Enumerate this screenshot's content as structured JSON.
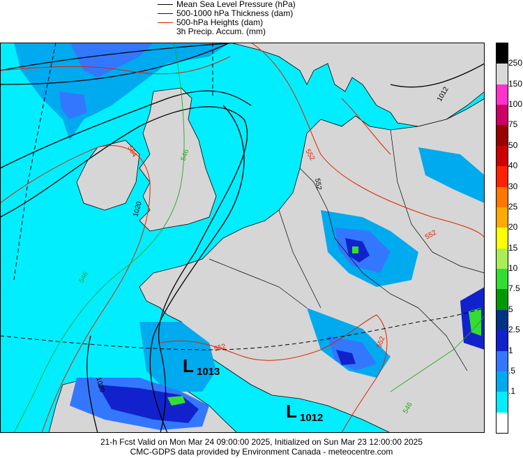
{
  "legend": {
    "items": [
      {
        "label": "Mean Sea Level Pressure (hPa)",
        "color": "#000000"
      },
      {
        "label": "500-1000 hPa Thickness (dam)",
        "color": "#0000cc"
      },
      {
        "label": "500-hPa Heights (dam)",
        "color": "#dd2200"
      },
      {
        "label": "3h Precip. Accum. (mm)",
        "color": ""
      }
    ]
  },
  "colorbar": {
    "labels": [
      "250",
      "150",
      "100",
      "75",
      "50",
      "40",
      "30",
      "25",
      "20",
      "15",
      "10",
      "7.5",
      "5",
      "2.5",
      "1",
      ".5",
      ".1"
    ],
    "colors": [
      "#000000",
      "#d9d9d9",
      "#ff33cc",
      "#cc0066",
      "#990000",
      "#cc0000",
      "#ff2200",
      "#ff7700",
      "#ffaa00",
      "#ffff00",
      "#aaee55",
      "#33dd33",
      "#009900",
      "#003388",
      "#1122cc",
      "#3377ff",
      "#00aaee",
      "#00eeff",
      "#ffffff"
    ]
  },
  "map": {
    "colors": {
      "ocean": "#00eeff",
      "land": "#d6d6d6",
      "light_precip": "#00aaee",
      "medium_precip": "#3377ff",
      "heavy_precip": "#1122cc",
      "very_heavy": "#003388",
      "green": "#33dd33",
      "darkgreen": "#009900"
    },
    "isobar_labels": [
      "1020",
      "1020",
      "1012"
    ],
    "height_labels": [
      "552",
      "552",
      "552",
      "552",
      "564",
      "552"
    ],
    "thickness_labels": [
      "546",
      "546",
      "546"
    ],
    "lows": [
      {
        "symbol": "L",
        "value": "1013"
      },
      {
        "symbol": "L",
        "value": "1012"
      }
    ]
  },
  "footer": {
    "line1": "21-h Fcst Valid on Mon Mar 24 09:00:00 2025, Initialized on Sun Mar 23 12:00:00 2025",
    "line2": "CMC-GDPS data provided by Environment Canada - meteocentre.com"
  }
}
